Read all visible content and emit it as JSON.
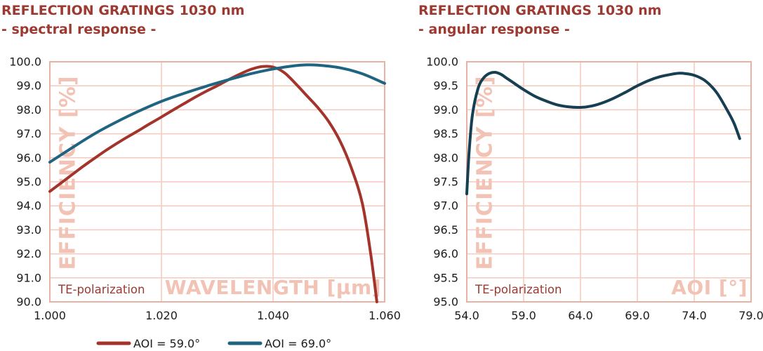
{
  "palette": {
    "background": "#ffffff",
    "title": "#9c3a31",
    "annotation": "#9c3a31",
    "grid": "#f5c9bd",
    "border": "#e9b2a3",
    "watermark": "#f2c3b5",
    "tick_text": "#1c1c1c",
    "legend_text": "#1c1c1c"
  },
  "chart_data": [
    {
      "id": "spectral-response",
      "type": "line",
      "title": "REFLECTION GRATINGS 1030 nm",
      "subtitle": "- spectral response -",
      "xlabel": "WAVELENGTH [μm]",
      "ylabel": "EFFICIENCY [%]",
      "annotation": "TE-polarization",
      "xlim": [
        1.0,
        1.06
      ],
      "ylim": [
        90.0,
        100.0
      ],
      "grid": true,
      "legend_position": "bottom",
      "x_ticks": [
        1.0,
        1.02,
        1.04,
        1.06
      ],
      "x_tick_labels": [
        "1.000",
        "1.020",
        "1.040",
        "1.060"
      ],
      "y_ticks": [
        100,
        99,
        98,
        97,
        96,
        95,
        94,
        93,
        92,
        91,
        90
      ],
      "y_tick_labels": [
        "100.0",
        "99.0",
        "98.0",
        "97.0",
        "96.0",
        "95.0",
        "94.0",
        "93.0",
        "92.0",
        "91.0",
        "90.0"
      ],
      "series": [
        {
          "name": "AOI = 59.0°",
          "color": "#a3342b",
          "points": [
            [
              1.0,
              94.6
            ],
            [
              1.002,
              94.95
            ],
            [
              1.004,
              95.3
            ],
            [
              1.006,
              95.65
            ],
            [
              1.008,
              95.98
            ],
            [
              1.01,
              96.3
            ],
            [
              1.012,
              96.6
            ],
            [
              1.014,
              96.88
            ],
            [
              1.016,
              97.15
            ],
            [
              1.018,
              97.43
            ],
            [
              1.02,
              97.7
            ],
            [
              1.022,
              97.98
            ],
            [
              1.024,
              98.25
            ],
            [
              1.026,
              98.52
            ],
            [
              1.028,
              98.77
            ],
            [
              1.03,
              99.0
            ],
            [
              1.032,
              99.25
            ],
            [
              1.034,
              99.48
            ],
            [
              1.036,
              99.68
            ],
            [
              1.038,
              99.8
            ],
            [
              1.04,
              99.78
            ],
            [
              1.042,
              99.55
            ],
            [
              1.044,
              99.1
            ],
            [
              1.046,
              98.6
            ],
            [
              1.048,
              98.1
            ],
            [
              1.05,
              97.5
            ],
            [
              1.052,
              96.7
            ],
            [
              1.054,
              95.6
            ],
            [
              1.056,
              94.1
            ],
            [
              1.0575,
              92.0
            ],
            [
              1.0586,
              90.0
            ]
          ]
        },
        {
          "name": "AOI = 69.0°",
          "color": "#1f6480",
          "points": [
            [
              1.0,
              95.82
            ],
            [
              1.004,
              96.42
            ],
            [
              1.008,
              97.0
            ],
            [
              1.012,
              97.5
            ],
            [
              1.016,
              97.95
            ],
            [
              1.02,
              98.35
            ],
            [
              1.024,
              98.68
            ],
            [
              1.028,
              98.98
            ],
            [
              1.032,
              99.25
            ],
            [
              1.036,
              99.5
            ],
            [
              1.04,
              99.7
            ],
            [
              1.044,
              99.84
            ],
            [
              1.046,
              99.87
            ],
            [
              1.048,
              99.86
            ],
            [
              1.052,
              99.75
            ],
            [
              1.056,
              99.5
            ],
            [
              1.06,
              99.1
            ]
          ]
        }
      ]
    },
    {
      "id": "angular-response",
      "type": "line",
      "title": "REFLECTION GRATINGS 1030 nm",
      "subtitle": "- angular response -",
      "xlabel": "AOI [°]",
      "ylabel": "EFFICIENCY [%]",
      "annotation": "TE-polarization",
      "xlim": [
        54.0,
        79.0
      ],
      "ylim": [
        95.0,
        100.0
      ],
      "grid": true,
      "legend_position": "none",
      "x_ticks": [
        54.0,
        59.0,
        64.0,
        69.0,
        74.0,
        79.0
      ],
      "x_tick_labels": [
        "54.0",
        "59.0",
        "64.0",
        "69.0",
        "74.0",
        "79.0"
      ],
      "y_ticks": [
        100,
        99.5,
        99,
        98.5,
        98,
        97.5,
        97,
        96.5,
        96,
        95.5,
        95
      ],
      "y_tick_labels": [
        "100.0",
        "99.5",
        "99.0",
        "98.5",
        "98.0",
        "97.5",
        "97.0",
        "96.5",
        "96.0",
        "95.5",
        "95.0"
      ],
      "series": [
        {
          "color": "#163f52",
          "points": [
            [
              54.0,
              97.25
            ],
            [
              54.2,
              98.1
            ],
            [
              54.5,
              98.9
            ],
            [
              55.0,
              99.45
            ],
            [
              55.5,
              99.67
            ],
            [
              56.0,
              99.76
            ],
            [
              56.5,
              99.78
            ],
            [
              57.0,
              99.74
            ],
            [
              57.5,
              99.66
            ],
            [
              58.0,
              99.58
            ],
            [
              59.0,
              99.42
            ],
            [
              60.0,
              99.28
            ],
            [
              61.0,
              99.18
            ],
            [
              62.0,
              99.1
            ],
            [
              63.0,
              99.06
            ],
            [
              64.0,
              99.05
            ],
            [
              65.0,
              99.08
            ],
            [
              66.0,
              99.15
            ],
            [
              67.0,
              99.25
            ],
            [
              68.0,
              99.37
            ],
            [
              69.0,
              99.5
            ],
            [
              70.0,
              99.61
            ],
            [
              71.0,
              99.69
            ],
            [
              72.0,
              99.74
            ],
            [
              72.6,
              99.76
            ],
            [
              73.0,
              99.76
            ],
            [
              74.0,
              99.72
            ],
            [
              75.0,
              99.6
            ],
            [
              76.0,
              99.35
            ],
            [
              77.0,
              98.95
            ],
            [
              77.5,
              98.72
            ],
            [
              78.0,
              98.4
            ]
          ]
        }
      ]
    }
  ]
}
